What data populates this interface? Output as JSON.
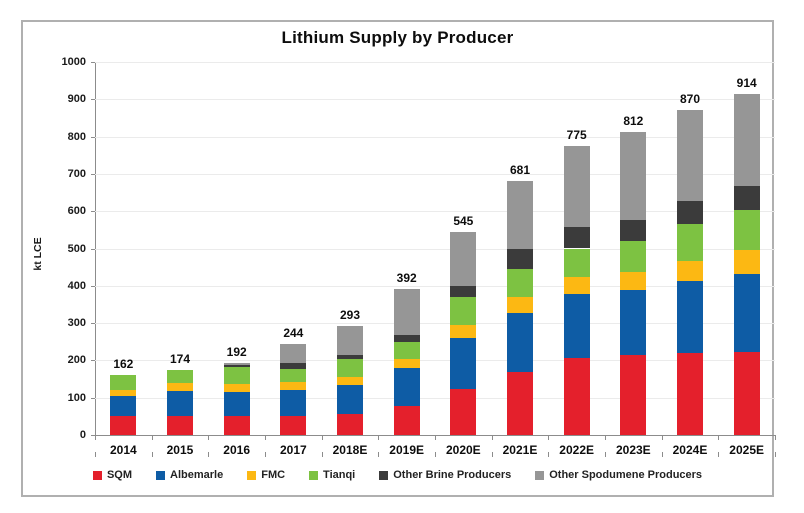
{
  "title": "Lithium Supply by Producer",
  "y_axis_title": "kt LCE",
  "chart_data": {
    "type": "bar",
    "stacked": true,
    "title": "Lithium Supply by Producer",
    "ylabel": "kt LCE",
    "xlabel": "",
    "ylim": [
      0,
      1000
    ],
    "y_ticks": [
      0,
      100,
      200,
      300,
      400,
      500,
      600,
      700,
      800,
      900,
      1000
    ],
    "grid": "horizontal",
    "legend_position": "bottom",
    "categories": [
      "2014",
      "2015",
      "2016",
      "2017",
      "2018E",
      "2019E",
      "2020E",
      "2021E",
      "2022E",
      "2023E",
      "2024E",
      "2025E"
    ],
    "totals": [
      162,
      174,
      192,
      244,
      293,
      392,
      545,
      681,
      775,
      812,
      870,
      914
    ],
    "series": [
      {
        "name": "SQM",
        "color": "#e4202c",
        "values": [
          50,
          51,
          51,
          52,
          55,
          79,
          124,
          169,
          206,
          214,
          219,
          222
        ]
      },
      {
        "name": "Albemarle",
        "color": "#0e5ca5",
        "values": [
          54,
          68,
          64,
          68,
          80,
          101,
          137,
          158,
          173,
          176,
          195,
          210
        ]
      },
      {
        "name": "FMC",
        "color": "#fcb813",
        "values": [
          17,
          20,
          22,
          21,
          21,
          25,
          35,
          44,
          45,
          46,
          53,
          63
        ]
      },
      {
        "name": "Tianqi",
        "color": "#7dc242",
        "values": [
          41,
          35,
          44,
          37,
          48,
          45,
          74,
          75,
          76,
          83,
          99,
          108
        ]
      },
      {
        "name": "Other Brine Producers",
        "color": "#3b3b3b",
        "values": [
          0,
          0,
          6,
          14,
          11,
          18,
          30,
          53,
          57,
          57,
          61,
          64
        ]
      },
      {
        "name": "Other Spodumene Producers",
        "color": "#969696",
        "values": [
          0,
          0,
          5,
          52,
          78,
          124,
          145,
          182,
          218,
          236,
          243,
          247
        ]
      }
    ]
  },
  "colors": {
    "grid": "#ebebeb",
    "axis": "#8c8c8c",
    "frame_border": "#b0b0b0",
    "text": "#0d0d0d"
  }
}
